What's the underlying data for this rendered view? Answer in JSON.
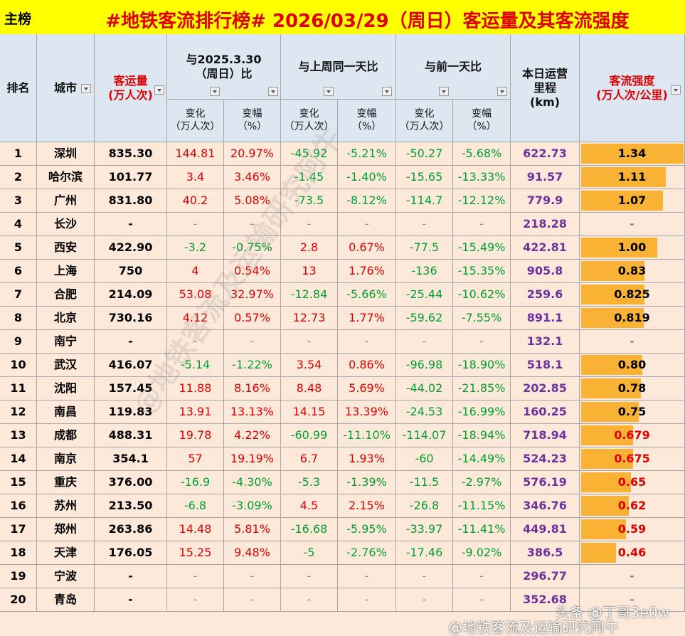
{
  "header": {
    "tag": "主榜",
    "title": "#地铁客流排行榜# 2026/03/29（周日）客运量及其客流强度"
  },
  "table": {
    "headers": {
      "rank": "排名",
      "city": "城市",
      "volume": "客运量\n(万人次)",
      "groups": [
        "与2025.3.30（周日）比",
        "与上周同一天比",
        "与前一天比"
      ],
      "subheaders": [
        "变化\n（万人次）",
        "变幅\n（%）",
        "变化\n（万人次）",
        "变幅\n（%）",
        "变化\n（万人次）",
        "变幅\n（%）"
      ],
      "mileage": "本日运营\n里程\n(km)",
      "intensity": "客流强度\n(万人次/公里)"
    },
    "rows": [
      [
        "1",
        "深圳",
        "835.30",
        "144.81",
        "20.97%",
        "-45.92",
        "-5.21%",
        "-50.27",
        "-5.68%",
        "622.73",
        "1.34"
      ],
      [
        "2",
        "哈尔滨",
        "101.77",
        "3.4",
        "3.46%",
        "-1.45",
        "-1.40%",
        "-15.65",
        "-13.33%",
        "91.57",
        "1.11"
      ],
      [
        "3",
        "广州",
        "831.80",
        "40.2",
        "5.08%",
        "-73.5",
        "-8.12%",
        "-114.7",
        "-12.12%",
        "779.9",
        "1.07"
      ],
      [
        "4",
        "长沙",
        "-",
        "-",
        "-",
        "-",
        "-",
        "-",
        "-",
        "218.28",
        "-"
      ],
      [
        "5",
        "西安",
        "422.90",
        "-3.2",
        "-0.75%",
        "2.8",
        "0.67%",
        "-77.5",
        "-15.49%",
        "422.81",
        "1.00"
      ],
      [
        "6",
        "上海",
        "750",
        "4",
        "0.54%",
        "13",
        "1.76%",
        "-136",
        "-15.35%",
        "905.8",
        "0.83"
      ],
      [
        "7",
        "合肥",
        "214.09",
        "53.08",
        "32.97%",
        "-12.84",
        "-5.66%",
        "-25.44",
        "-10.62%",
        "259.6",
        "0.825"
      ],
      [
        "8",
        "北京",
        "730.16",
        "4.12",
        "0.57%",
        "12.73",
        "1.77%",
        "-59.62",
        "-7.55%",
        "891.1",
        "0.819"
      ],
      [
        "9",
        "南宁",
        "-",
        "-",
        "-",
        "-",
        "-",
        "-",
        "-",
        "132.1",
        "-"
      ],
      [
        "10",
        "武汉",
        "416.07",
        "-5.14",
        "-1.22%",
        "3.54",
        "0.86%",
        "-96.98",
        "-18.90%",
        "518.1",
        "0.80"
      ],
      [
        "11",
        "沈阳",
        "157.45",
        "11.88",
        "8.16%",
        "8.48",
        "5.69%",
        "-44.02",
        "-21.85%",
        "202.85",
        "0.78"
      ],
      [
        "12",
        "南昌",
        "119.83",
        "13.91",
        "13.13%",
        "14.15",
        "13.39%",
        "-24.53",
        "-16.99%",
        "160.25",
        "0.75"
      ],
      [
        "13",
        "成都",
        "488.31",
        "19.78",
        "4.22%",
        "-60.99",
        "-11.10%",
        "-114.07",
        "-18.94%",
        "718.94",
        "0.679"
      ],
      [
        "14",
        "南京",
        "354.1",
        "57",
        "19.19%",
        "6.7",
        "1.93%",
        "-60",
        "-14.49%",
        "524.23",
        "0.675"
      ],
      [
        "15",
        "重庆",
        "376.00",
        "-16.9",
        "-4.30%",
        "-5.3",
        "-1.39%",
        "-11.5",
        "-2.97%",
        "576.19",
        "0.65"
      ],
      [
        "16",
        "苏州",
        "213.50",
        "-6.8",
        "-3.09%",
        "4.5",
        "2.15%",
        "-26.8",
        "-11.15%",
        "346.76",
        "0.62"
      ],
      [
        "17",
        "郑州",
        "263.86",
        "14.48",
        "5.81%",
        "-16.68",
        "-5.95%",
        "-33.97",
        "-11.41%",
        "449.81",
        "0.59"
      ],
      [
        "18",
        "天津",
        "176.05",
        "15.25",
        "9.48%",
        "-5",
        "-2.76%",
        "-17.46",
        "-9.02%",
        "386.5",
        "0.46"
      ],
      [
        "19",
        "宁波",
        "-",
        "-",
        "-",
        "-",
        "-",
        "-",
        "-",
        "296.77",
        "-"
      ],
      [
        "20",
        "青岛",
        "-",
        "-",
        "-",
        "-",
        "-",
        "-",
        "-",
        "352.68",
        "-"
      ]
    ]
  },
  "watermarks": {
    "diagonal": "@地铁客流及运输研究阿牛",
    "footer_source": "头条 @丁哥3e0w",
    "footer_weibo": "@地铁客流及运输研究阿牛"
  }
}
